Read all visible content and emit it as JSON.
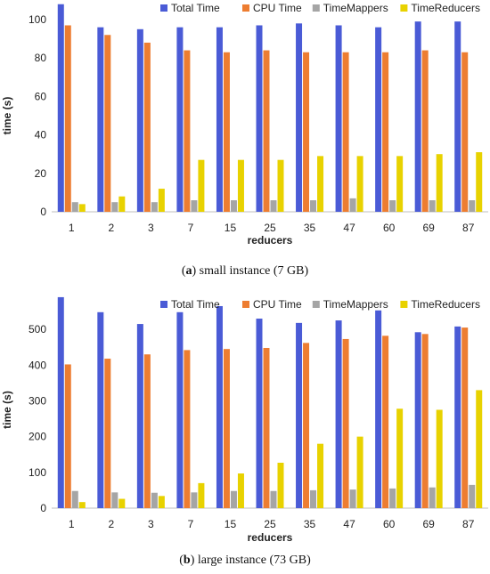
{
  "chart_data": [
    {
      "type": "bar",
      "categories": [
        "1",
        "2",
        "3",
        "7",
        "15",
        "25",
        "35",
        "47",
        "60",
        "69",
        "87"
      ],
      "xlabel": "reducers",
      "ylabel": "time (s)",
      "ylim": [
        0,
        100
      ],
      "yticks": [
        0,
        20,
        40,
        60,
        80,
        100
      ],
      "grid": false,
      "legend": "top-right",
      "series": [
        {
          "name": "Total Time",
          "color": "#4a5bd6",
          "values": [
            108,
            96,
            95,
            96,
            96,
            97,
            98,
            97,
            96,
            99,
            99
          ]
        },
        {
          "name": "CPU Time",
          "color": "#ed7d31",
          "values": [
            97,
            92,
            88,
            84,
            83,
            84,
            83,
            83,
            83,
            84,
            83
          ]
        },
        {
          "name": "TimeMappers",
          "color": "#a5a5a5",
          "values": [
            5,
            5,
            5,
            6,
            6,
            6,
            6,
            7,
            6,
            6,
            6
          ]
        },
        {
          "name": "TimeReducers",
          "color": "#e8d200",
          "values": [
            4,
            8,
            12,
            27,
            27,
            27,
            29,
            29,
            29,
            30,
            31
          ]
        }
      ]
    },
    {
      "type": "bar",
      "categories": [
        "1",
        "2",
        "3",
        "7",
        "15",
        "25",
        "35",
        "47",
        "60",
        "69",
        "87"
      ],
      "xlabel": "reducers",
      "ylabel": "time (s)",
      "ylim": [
        0,
        550
      ],
      "yticks": [
        0,
        100,
        200,
        300,
        400,
        500
      ],
      "grid": false,
      "legend": "top-right",
      "series": [
        {
          "name": "Total Time",
          "color": "#4a5bd6",
          "values": [
            590,
            548,
            515,
            548,
            565,
            530,
            518,
            525,
            553,
            492,
            508
          ]
        },
        {
          "name": "CPU Time",
          "color": "#ed7d31",
          "values": [
            402,
            418,
            430,
            442,
            445,
            448,
            462,
            473,
            482,
            487,
            505
          ]
        },
        {
          "name": "TimeMappers",
          "color": "#a5a5a5",
          "values": [
            48,
            44,
            43,
            44,
            48,
            48,
            50,
            52,
            55,
            58,
            65
          ]
        },
        {
          "name": "TimeReducers",
          "color": "#e8d200",
          "values": [
            17,
            26,
            34,
            70,
            97,
            127,
            180,
            200,
            278,
            275,
            330
          ]
        }
      ]
    }
  ],
  "captions": {
    "a_label": "a",
    "a_text": " small instance (7 GB)",
    "b_label": "b",
    "b_text": " large instance (73 GB)"
  }
}
